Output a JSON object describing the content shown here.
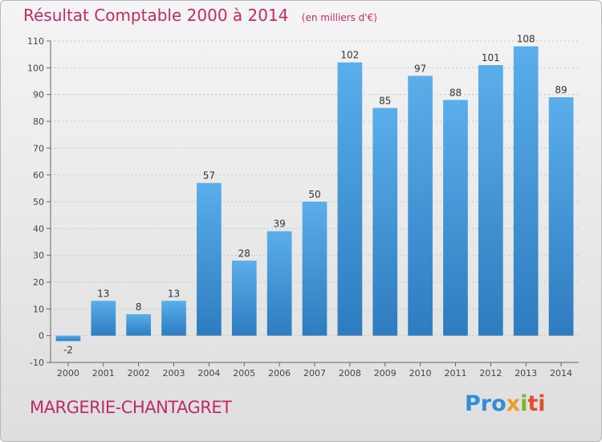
{
  "header": {
    "title": "Résultat Comptable 2000 à 2014",
    "subtitle": "(en milliers d'€)"
  },
  "footer": {
    "location": "MARGERIE-CHANTAGRET",
    "logo_parts": [
      "Pro",
      "x",
      "i",
      "ti"
    ]
  },
  "colors": {
    "title": "#c02a6a",
    "bar_top": "#5aaeea",
    "bar_bottom": "#2d7cc0"
  },
  "chart_data": {
    "type": "bar",
    "title": "Résultat Comptable 2000 à 2014",
    "subtitle": "(en milliers d'€)",
    "xlabel": "",
    "ylabel": "",
    "ylim": [
      -10,
      110
    ],
    "yticks": [
      -10,
      0,
      10,
      20,
      30,
      40,
      50,
      60,
      70,
      80,
      90,
      100,
      110
    ],
    "categories": [
      "2000",
      "2001",
      "2002",
      "2003",
      "2004",
      "2005",
      "2006",
      "2007",
      "2008",
      "2009",
      "2010",
      "2011",
      "2012",
      "2013",
      "2014"
    ],
    "values": [
      -2,
      13,
      8,
      13,
      57,
      28,
      39,
      50,
      102,
      85,
      97,
      88,
      101,
      108,
      89
    ],
    "grid": true
  }
}
